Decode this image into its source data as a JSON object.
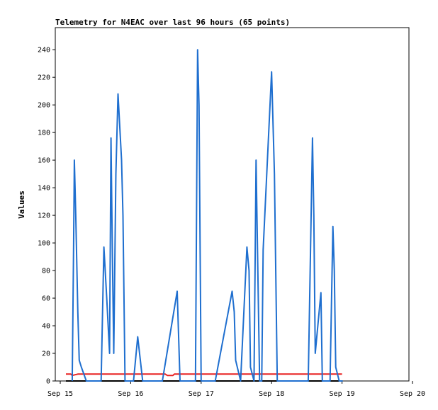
{
  "chart_data": {
    "type": "line",
    "title": "Telemetry for N4EAC over last 96 hours (65 points)",
    "xlabel": "",
    "ylabel": "Values",
    "x_tick_labels": [
      "Sep 15",
      "Sep 16",
      "Sep 17",
      "Sep 18",
      "Sep 19",
      "Sep 20"
    ],
    "y_ticks": [
      0,
      20,
      40,
      60,
      80,
      100,
      120,
      140,
      160,
      180,
      200,
      220,
      240
    ],
    "xlim": [
      "Sep 15",
      "Sep 20"
    ],
    "ylim": [
      0,
      256
    ],
    "grid": false,
    "legend": "none",
    "series": [
      {
        "color": "#1f6fcf",
        "x_days": [
          0.17,
          0.19,
          0.2,
          0.22,
          0.25,
          0.27,
          0.3,
          0.37,
          0.58,
          0.62,
          0.66,
          0.7,
          0.72,
          0.74,
          0.76,
          0.79,
          0.82,
          0.87,
          0.89,
          0.92,
          1.04,
          1.1,
          1.17,
          1.45,
          1.66,
          1.7,
          1.92,
          1.95,
          1.97,
          2.0,
          2.2,
          2.44,
          2.47,
          2.49,
          2.56,
          2.65,
          2.68,
          2.7,
          2.75,
          2.78,
          2.83,
          2.86,
          2.88,
          3.0,
          3.04,
          3.08,
          3.16,
          3.3,
          3.52,
          3.58,
          3.6,
          3.62,
          3.7,
          3.72,
          3.74,
          3.83,
          3.87,
          3.89,
          3.91,
          3.96,
          4.01
        ],
        "values": [
          0,
          100,
          160,
          120,
          50,
          15,
          10,
          0,
          0,
          97,
          60,
          20,
          176,
          90,
          20,
          150,
          208,
          160,
          120,
          0,
          0,
          32,
          0,
          0,
          65,
          0,
          0,
          240,
          200,
          0,
          0,
          65,
          50,
          15,
          0,
          97,
          80,
          10,
          0,
          160,
          0,
          0,
          95,
          224,
          150,
          0,
          0,
          0,
          0,
          176,
          120,
          20,
          64,
          0,
          0,
          0,
          112,
          80,
          10,
          0,
          0
        ]
      },
      {
        "color": "#e82020",
        "x_days": [
          0.08,
          0.15,
          0.17,
          0.25,
          0.5,
          1.0,
          1.45,
          1.49,
          1.52,
          1.6,
          1.62,
          2.0,
          2.5,
          3.0,
          3.5,
          4.0
        ],
        "values": [
          5,
          5,
          4,
          5,
          5,
          5,
          5,
          5,
          4,
          4,
          5,
          5,
          5,
          5,
          5,
          5
        ]
      },
      {
        "color": "#000000",
        "x_days": [
          0.08,
          4.0
        ],
        "values": [
          0,
          0
        ]
      }
    ]
  }
}
